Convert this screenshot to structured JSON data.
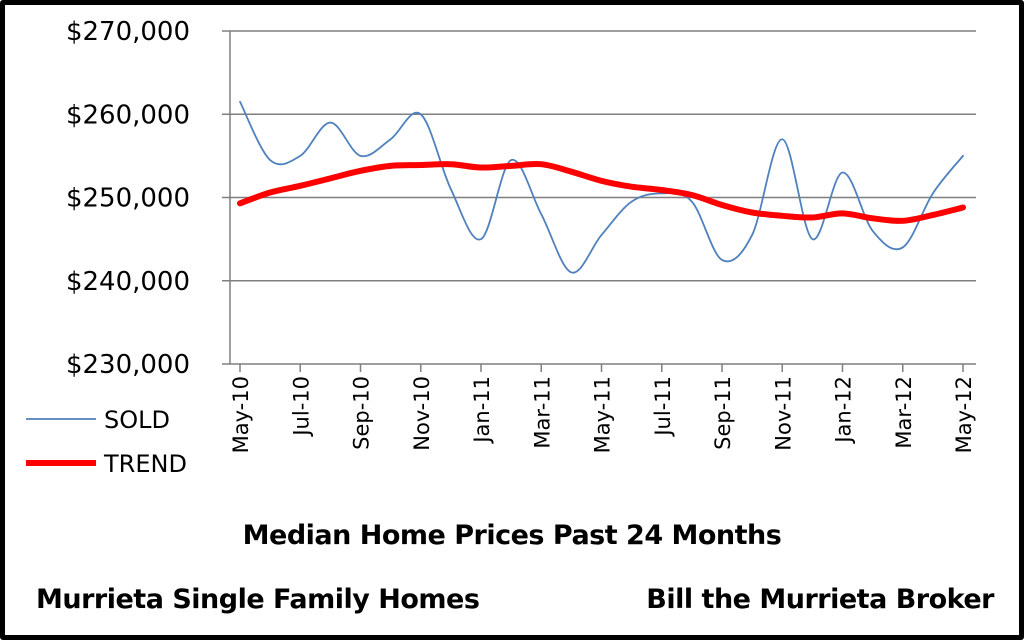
{
  "chart_data": {
    "type": "line",
    "title": "Median Home Prices Past 24  Months",
    "subtitle_left": "Murrieta Single Family Homes",
    "subtitle_right": "Bill the Murrieta Broker",
    "xlabel": "",
    "ylabel": "",
    "ylim": [
      230000,
      270000
    ],
    "y_ticks": [
      230000,
      240000,
      250000,
      260000,
      270000
    ],
    "y_tick_labels": [
      "$230,000",
      "$240,000",
      "$250,000",
      "$260,000",
      "$270,000"
    ],
    "x": [
      "May-10",
      "Jun-10",
      "Jul-10",
      "Aug-10",
      "Sep-10",
      "Oct-10",
      "Nov-10",
      "Dec-10",
      "Jan-11",
      "Feb-11",
      "Mar-11",
      "Apr-11",
      "May-11",
      "Jun-11",
      "Jul-11",
      "Aug-11",
      "Sep-11",
      "Oct-11",
      "Nov-11",
      "Dec-11",
      "Jan-12",
      "Feb-12",
      "Mar-12",
      "Apr-12",
      "May-12"
    ],
    "x_tick_labels": [
      "May-10",
      "Jul-10",
      "Sep-10",
      "Nov-10",
      "Jan-11",
      "Mar-11",
      "May-11",
      "Jul-11",
      "Sep-11",
      "Nov-11",
      "Jan-12",
      "Mar-12",
      "May-12"
    ],
    "grid": "horizontal",
    "legend_position": "bottom-left",
    "series": [
      {
        "name": "SOLD",
        "color": "#4f81bd",
        "values": [
          261500,
          254500,
          255000,
          259000,
          255000,
          257000,
          260000,
          251000,
          245000,
          254500,
          248000,
          241000,
          245500,
          249500,
          250500,
          249500,
          242500,
          245500,
          257000,
          245000,
          253000,
          246000,
          244000,
          250500,
          255000
        ]
      },
      {
        "name": "TREND",
        "color": "#ff0000",
        "values": [
          249300,
          250600,
          251400,
          252300,
          253200,
          253800,
          253900,
          254000,
          253600,
          253800,
          254000,
          253100,
          252000,
          251300,
          250900,
          250300,
          249100,
          248200,
          247800,
          247600,
          248100,
          247500,
          247200,
          247900,
          248800
        ]
      }
    ]
  }
}
